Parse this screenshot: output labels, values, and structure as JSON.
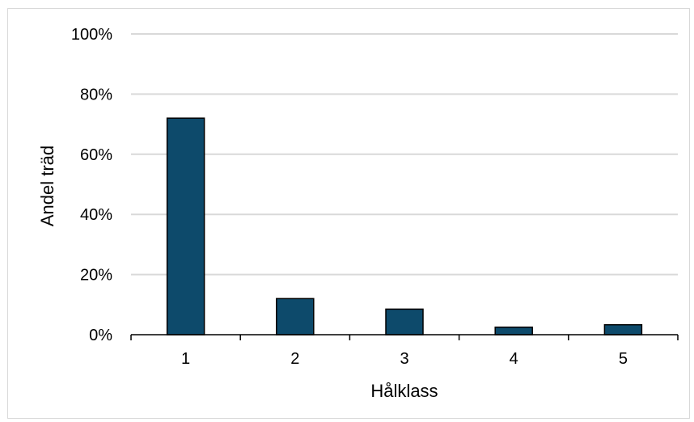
{
  "chart_data": {
    "type": "bar",
    "title": "",
    "xlabel": "Hålklass",
    "ylabel": "Andel träd",
    "categories": [
      "1",
      "2",
      "3",
      "4",
      "5"
    ],
    "values": [
      72,
      12,
      8.5,
      2.5,
      3.3
    ],
    "ylim": [
      0,
      100
    ],
    "yticks": [
      0,
      20,
      40,
      60,
      80,
      100
    ],
    "ytick_labels": [
      "0%",
      "20%",
      "40%",
      "60%",
      "80%",
      "100%"
    ],
    "grid": true,
    "legend": "none",
    "colors": {
      "bar": "#0d4a6b",
      "bar_edge": "#000000",
      "grid": "#d9d9d9",
      "axis": "#000000"
    }
  }
}
